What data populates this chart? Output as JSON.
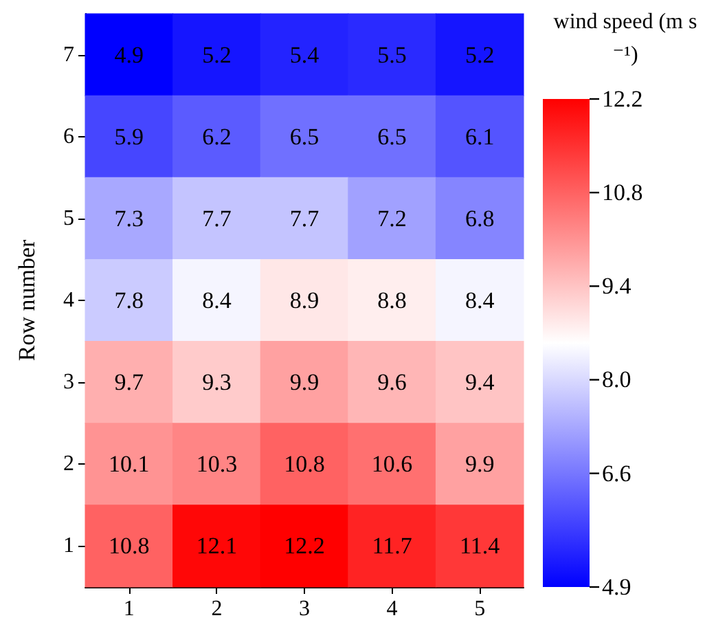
{
  "chart_data": {
    "type": "heatmap",
    "ylabel": "Row number",
    "clabel": "wind speed (m s⁻¹)",
    "categories": [
      "1",
      "2",
      "3",
      "4",
      "5"
    ],
    "y_categories": [
      "7",
      "6",
      "5",
      "4",
      "3",
      "2",
      "1"
    ],
    "cells": [
      [
        4.9,
        5.2,
        5.4,
        5.5,
        5.2
      ],
      [
        5.9,
        6.2,
        6.5,
        6.5,
        6.1
      ],
      [
        7.3,
        7.7,
        7.7,
        7.2,
        6.8
      ],
      [
        7.8,
        8.4,
        8.9,
        8.8,
        8.4
      ],
      [
        9.7,
        9.3,
        9.9,
        9.6,
        9.4
      ],
      [
        10.1,
        10.3,
        10.8,
        10.6,
        9.9
      ],
      [
        10.8,
        12.1,
        12.2,
        11.7,
        11.4
      ]
    ],
    "clim": [
      4.9,
      12.2
    ],
    "cticks": [
      4.9,
      6.6,
      {
        "value": 8,
        "label": "8.0"
      },
      9.4,
      10.8,
      12.2
    ],
    "data_labels": true
  }
}
